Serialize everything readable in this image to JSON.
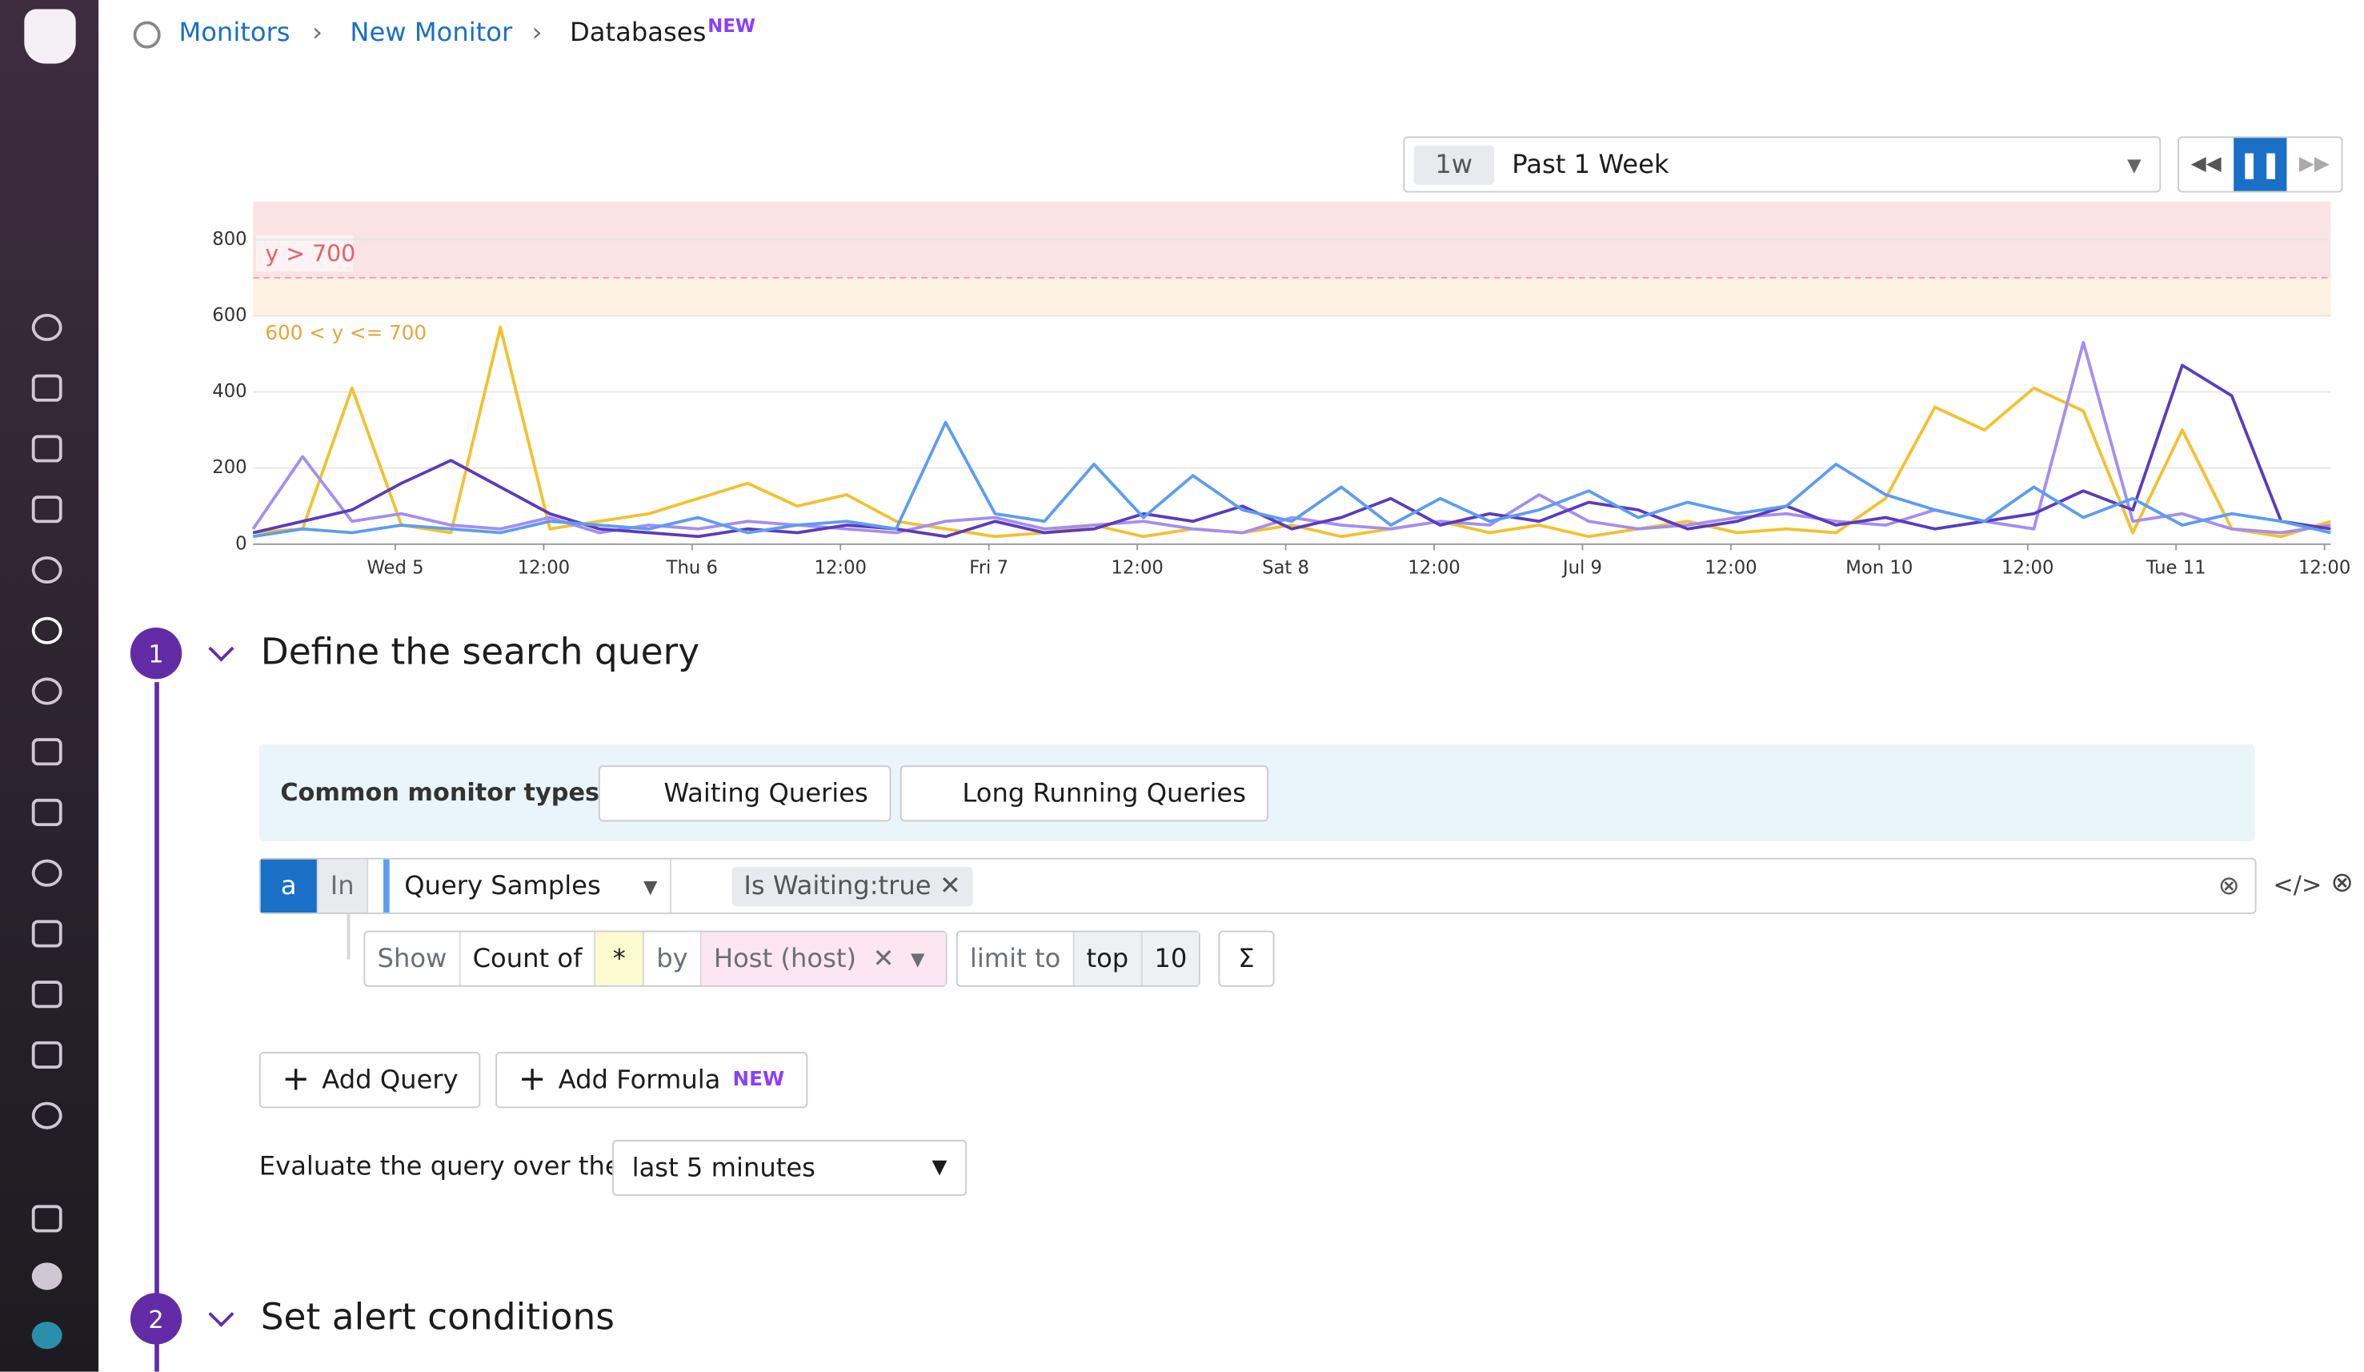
{
  "breadcrumb": {
    "items": [
      "Monitors",
      "New Monitor",
      "Databases"
    ],
    "badge": "NEW"
  },
  "time_picker": {
    "short": "1w",
    "label": "Past 1 Week"
  },
  "chart_data": {
    "type": "line",
    "x": [
      0,
      4,
      8,
      12,
      16,
      20,
      24,
      28,
      32,
      36,
      40,
      44,
      48,
      52,
      56,
      60,
      64,
      68,
      72,
      76,
      80,
      84,
      88,
      92,
      96,
      100,
      104,
      108,
      112,
      116,
      120,
      124,
      128,
      132,
      136,
      140,
      144,
      148,
      152,
      156,
      160,
      164,
      168
    ],
    "xlim": [
      0,
      168
    ],
    "xticks": [
      {
        "value": 11.5,
        "label": "Wed 5"
      },
      {
        "value": 23.5,
        "label": "12:00"
      },
      {
        "value": 35.5,
        "label": "Thu 6"
      },
      {
        "value": 47.5,
        "label": "12:00"
      },
      {
        "value": 59.5,
        "label": "Fri 7"
      },
      {
        "value": 71.5,
        "label": "12:00"
      },
      {
        "value": 83.5,
        "label": "Sat 8"
      },
      {
        "value": 95.5,
        "label": "12:00"
      },
      {
        "value": 107.5,
        "label": "Jul 9"
      },
      {
        "value": 119.5,
        "label": "12:00"
      },
      {
        "value": 131.5,
        "label": "Mon 10"
      },
      {
        "value": 143.5,
        "label": "12:00"
      },
      {
        "value": 155.5,
        "label": "Tue 11"
      },
      {
        "value": 167.5,
        "label": "12:00"
      }
    ],
    "ylim": [
      0,
      900
    ],
    "yticks": [
      0,
      200,
      400,
      600,
      800
    ],
    "grid": true,
    "thresholds": {
      "alert": {
        "value": 700,
        "label": "y > 700",
        "color": "#f8d7da"
      },
      "warning": {
        "value": 600,
        "label": "600 < y <= 700",
        "color": "#fdeedc"
      }
    },
    "series": [
      {
        "color": "#f2c12e",
        "values": [
          30,
          40,
          410,
          50,
          30,
          570,
          40,
          60,
          80,
          120,
          160,
          100,
          130,
          60,
          40,
          20,
          30,
          50,
          20,
          40,
          30,
          50,
          20,
          40,
          60,
          30,
          50,
          20,
          40,
          60,
          30,
          40,
          30,
          120,
          360,
          300,
          410,
          350,
          30,
          300,
          40,
          20,
          60
        ]
      },
      {
        "color": "#a48df3",
        "values": [
          40,
          230,
          60,
          80,
          50,
          40,
          70,
          30,
          50,
          40,
          60,
          50,
          40,
          30,
          60,
          70,
          40,
          50,
          60,
          40,
          30,
          70,
          50,
          40,
          60,
          50,
          130,
          60,
          40,
          50,
          70,
          80,
          60,
          50,
          90,
          60,
          40,
          530,
          60,
          80,
          40,
          30,
          50
        ]
      },
      {
        "color": "#5a3bc0",
        "values": [
          30,
          60,
          90,
          160,
          220,
          150,
          80,
          40,
          30,
          20,
          40,
          30,
          50,
          40,
          20,
          60,
          30,
          40,
          80,
          60,
          100,
          40,
          70,
          120,
          50,
          80,
          60,
          110,
          90,
          40,
          60,
          100,
          50,
          70,
          40,
          60,
          80,
          140,
          90,
          470,
          390,
          60,
          40
        ]
      },
      {
        "color": "#5d9cf2",
        "values": [
          20,
          40,
          30,
          50,
          40,
          30,
          60,
          50,
          40,
          70,
          30,
          50,
          60,
          40,
          320,
          80,
          60,
          210,
          70,
          180,
          90,
          60,
          150,
          50,
          120,
          60,
          90,
          140,
          70,
          110,
          80,
          100,
          210,
          130,
          90,
          60,
          150,
          70,
          120,
          50,
          80,
          60,
          30
        ]
      }
    ]
  },
  "steps": [
    {
      "number": "1",
      "title": "Define the search query"
    },
    {
      "number": "2",
      "title": "Set alert conditions"
    }
  ],
  "common_types": {
    "label": "Common monitor types",
    "buttons": [
      "Waiting Queries",
      "Long Running Queries"
    ]
  },
  "query": {
    "name": "a",
    "in": "In",
    "source": "Query Samples",
    "filter": "Is Waiting:true",
    "show": "Show",
    "aggregation": "Count of",
    "measure": "*",
    "by": "by",
    "group": "Host (host)",
    "limit": "limit to",
    "order": "top",
    "count": "10"
  },
  "actions": {
    "add_query": "Add Query",
    "add_formula": "Add Formula",
    "badge": "NEW"
  },
  "evaluate": {
    "label": "Evaluate the query over the",
    "window": "last 5 minutes"
  }
}
